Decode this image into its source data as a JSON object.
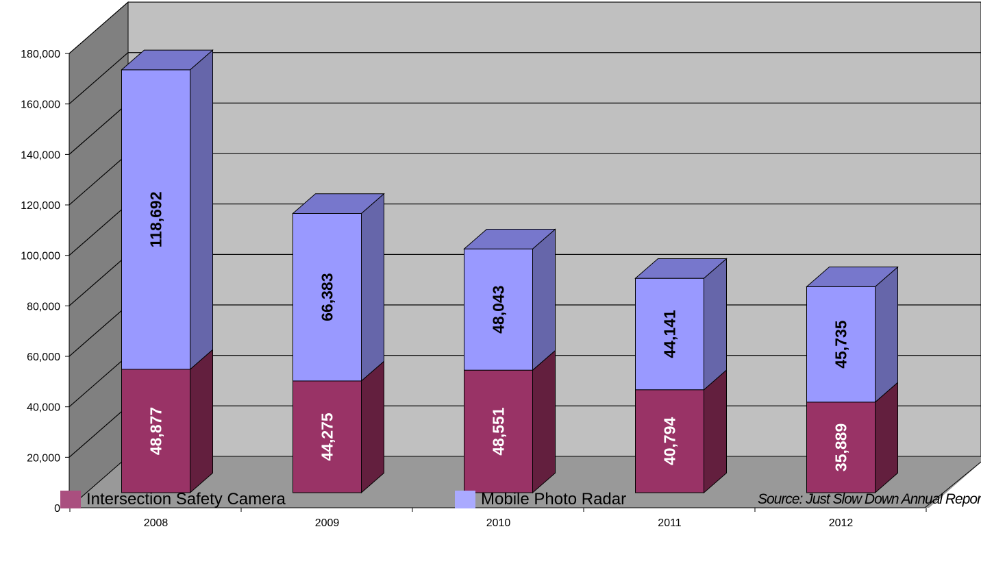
{
  "chart_data": {
    "type": "bar",
    "stacked": true,
    "style": "3d",
    "categories": [
      "2008",
      "2009",
      "2010",
      "2011",
      "2012"
    ],
    "series": [
      {
        "name": "Intersection Safety Camera",
        "values": [
          48877,
          44275,
          48551,
          40794,
          35889
        ],
        "color": "#993366"
      },
      {
        "name": "Mobile Photo Radar",
        "values": [
          118692,
          66383,
          48043,
          44141,
          45735
        ],
        "color": "#9999ff"
      }
    ],
    "data_labels": {
      "Intersection Safety Camera": [
        "48,877",
        "44,275",
        "48,551",
        "40,794",
        "35,889"
      ],
      "Mobile Photo Radar": [
        "118,692",
        "66,383",
        "48,043",
        "44,141",
        "45,735"
      ]
    },
    "y_ticks": [
      "0",
      "20,000",
      "40,000",
      "60,000",
      "80,000",
      "100,000",
      "120,000",
      "140,000",
      "160,000",
      "180,000"
    ],
    "ylim": [
      0,
      180000
    ],
    "grid": true,
    "legend_position": "bottom",
    "source_note": "Source: Just Slow Down Annual Report"
  }
}
